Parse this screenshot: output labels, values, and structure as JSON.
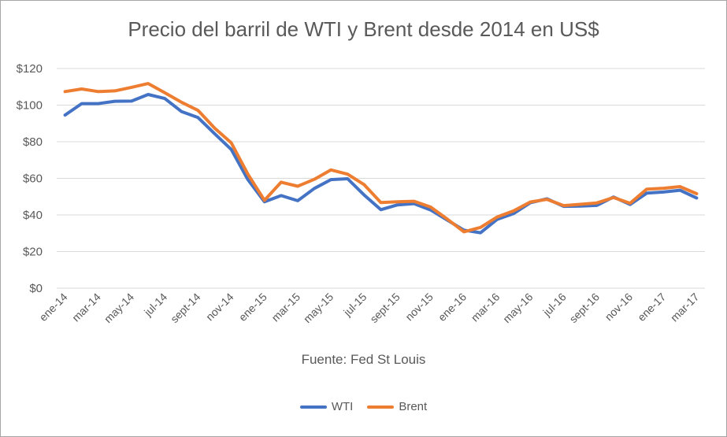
{
  "chart_data": {
    "type": "line",
    "title": "Precio del barril de WTI y Brent desde 2014 en US$",
    "subtitle": "Fuente: Fed St Louis",
    "xlabel": "",
    "ylabel": "",
    "ylim": [
      0,
      120
    ],
    "y_ticks": [
      "$0",
      "$20",
      "$40",
      "$60",
      "$80",
      "$100",
      "$120"
    ],
    "y_tick_values": [
      0,
      20,
      40,
      60,
      80,
      100,
      120
    ],
    "grid": true,
    "legend_position": "bottom",
    "x": [
      "ene-14",
      "feb-14",
      "mar-14",
      "abr-14",
      "may-14",
      "jun-14",
      "jul-14",
      "ago-14",
      "sept-14",
      "oct-14",
      "nov-14",
      "dic-14",
      "ene-15",
      "feb-15",
      "mar-15",
      "abr-15",
      "may-15",
      "jun-15",
      "jul-15",
      "ago-15",
      "sept-15",
      "oct-15",
      "nov-15",
      "dic-15",
      "ene-16",
      "feb-16",
      "mar-16",
      "abr-16",
      "may-16",
      "jun-16",
      "jul-16",
      "ago-16",
      "sept-16",
      "oct-16",
      "nov-16",
      "dic-16",
      "ene-17",
      "feb-17",
      "mar-17"
    ],
    "x_tick_labels": [
      "ene-14",
      "mar-14",
      "may-14",
      "jul-14",
      "sept-14",
      "nov-14",
      "ene-15",
      "mar-15",
      "may-15",
      "jul-15",
      "sept-15",
      "nov-15",
      "ene-16",
      "mar-16",
      "may-16",
      "jul-16",
      "sept-16",
      "nov-16",
      "ene-17",
      "mar-17"
    ],
    "series": [
      {
        "name": "WTI",
        "color": "#4472c4",
        "values": [
          94.6,
          100.8,
          100.8,
          102.1,
          102.2,
          105.8,
          103.6,
          96.5,
          93.2,
          84.4,
          75.8,
          59.3,
          47.2,
          50.6,
          47.8,
          54.5,
          59.3,
          59.8,
          50.9,
          42.9,
          45.5,
          46.2,
          42.7,
          37.2,
          31.7,
          30.3,
          37.6,
          40.8,
          46.7,
          48.8,
          44.7,
          44.8,
          45.2,
          49.8,
          45.7,
          51.9,
          52.5,
          53.5,
          49.3
        ]
      },
      {
        "name": "Brent",
        "color": "#ed7d31",
        "values": [
          107.4,
          108.8,
          107.4,
          107.8,
          109.7,
          111.8,
          106.8,
          101.6,
          97.1,
          87.4,
          79.4,
          62.3,
          48.0,
          57.9,
          55.7,
          59.5,
          64.6,
          62.3,
          56.5,
          46.8,
          47.2,
          47.5,
          44.3,
          37.7,
          30.8,
          33.2,
          38.9,
          42.3,
          47.1,
          48.5,
          45.1,
          45.8,
          46.6,
          49.5,
          46.4,
          54.1,
          54.6,
          55.5,
          51.6
        ]
      }
    ]
  }
}
